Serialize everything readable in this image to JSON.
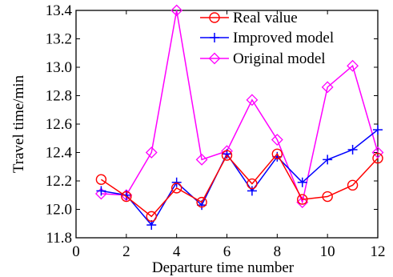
{
  "chart_data": {
    "type": "line",
    "xlabel": "Departure time number",
    "ylabel": "Travel time/min",
    "xlim": [
      0,
      12
    ],
    "ylim": [
      11.8,
      13.4
    ],
    "xticks": [
      0,
      2,
      4,
      6,
      8,
      10,
      12
    ],
    "yticks": [
      11.8,
      12.0,
      12.2,
      12.4,
      12.6,
      12.8,
      13.0,
      13.2,
      13.4
    ],
    "grid": false,
    "legend_position": "top-right",
    "series": [
      {
        "name": "Real value",
        "color": "#ff0000",
        "marker": "circle",
        "x": [
          1,
          2,
          3,
          4,
          5,
          6,
          7,
          8,
          9,
          10,
          11,
          12
        ],
        "values": [
          12.21,
          12.09,
          11.95,
          12.15,
          12.05,
          12.38,
          12.18,
          12.39,
          12.07,
          12.09,
          12.17,
          12.36
        ]
      },
      {
        "name": "Improved model",
        "color": "#0000ff",
        "marker": "plus",
        "x": [
          1,
          2,
          3,
          4,
          5,
          6,
          7,
          8,
          9,
          10,
          11,
          12
        ],
        "values": [
          12.13,
          12.1,
          11.89,
          12.19,
          12.03,
          12.39,
          12.13,
          12.37,
          12.19,
          12.35,
          12.42,
          12.56
        ]
      },
      {
        "name": "Original model",
        "color": "#ff00ff",
        "marker": "diamond",
        "x": [
          1,
          2,
          3,
          4,
          5,
          6,
          7,
          8,
          9,
          10,
          11,
          12
        ],
        "values": [
          12.11,
          12.1,
          12.4,
          13.4,
          12.35,
          12.41,
          12.77,
          12.49,
          12.05,
          12.86,
          13.01,
          12.4
        ]
      }
    ]
  }
}
